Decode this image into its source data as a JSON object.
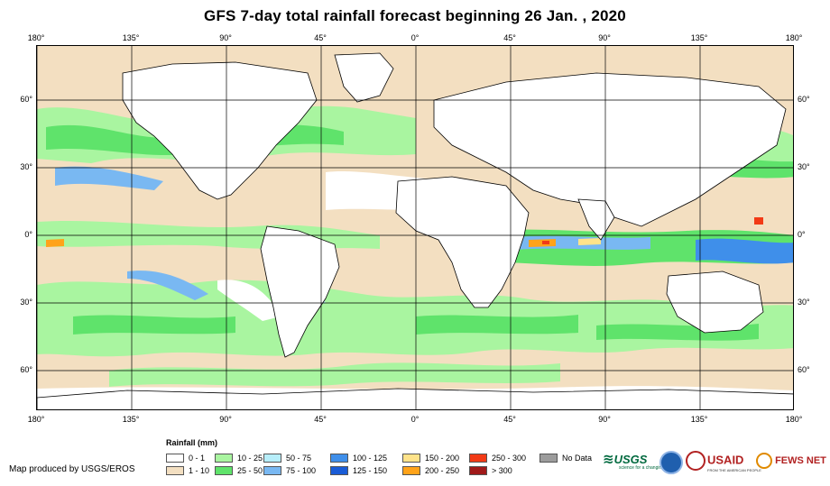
{
  "title": "GFS 7-day total rainfall forecast beginning 26 Jan. , 2020",
  "map": {
    "lon_ticks_top": [
      "180°",
      "135°",
      "90°",
      "45°",
      "0°",
      "45°",
      "90°",
      "135°",
      "180°"
    ],
    "lon_ticks_bottom": [
      "180°",
      "135°",
      "90°",
      "45°",
      "0°",
      "45°",
      "90°",
      "135°",
      "180°"
    ],
    "lat_ticks_left": [
      "60°",
      "30°",
      "0°",
      "30°",
      "60°"
    ],
    "lat_ticks_right": [
      "60°",
      "30°",
      "0°",
      "30°",
      "60°"
    ],
    "lon_values": [
      -180,
      -135,
      -90,
      -45,
      0,
      45,
      90,
      135,
      180
    ],
    "lat_values": [
      60,
      30,
      0,
      -30,
      -60
    ],
    "lat_range": [
      -78,
      84
    ],
    "lon_range": [
      -180,
      180
    ],
    "colors": {
      "ocean_background": "#F3DFC1",
      "grid": "#000000",
      "coast": "#000000"
    }
  },
  "legend": {
    "title": "Rainfall (mm)",
    "items": [
      {
        "label": "0 - 1",
        "color": "#FFFFFF"
      },
      {
        "label": "1 - 10",
        "color": "#F3DFC1"
      },
      {
        "label": "10 - 25",
        "color": "#A9F5A0"
      },
      {
        "label": "25 - 50",
        "color": "#5FE36B"
      },
      {
        "label": "50 - 75",
        "color": "#B7EEFA"
      },
      {
        "label": "75 - 100",
        "color": "#79B8F2"
      },
      {
        "label": "100 - 125",
        "color": "#3F8FEA"
      },
      {
        "label": "125 - 150",
        "color": "#1A5CD6"
      },
      {
        "label": "150 - 200",
        "color": "#FFE38A"
      },
      {
        "label": "200 - 250",
        "color": "#FFA31A"
      },
      {
        "label": "250 - 300",
        "color": "#F23A16"
      },
      {
        "label": "> 300",
        "color": "#A01A1A"
      },
      {
        "label": "No Data",
        "color": "#9C9C9C"
      }
    ]
  },
  "credit": "Map produced by USGS/EROS",
  "logos": {
    "usgs": "USGS",
    "usgs_tagline": "science for a changing world",
    "usaid": "USAID",
    "usaid_tagline": "FROM THE AMERICAN PEOPLE",
    "fewsnet": "FEWS NET"
  }
}
